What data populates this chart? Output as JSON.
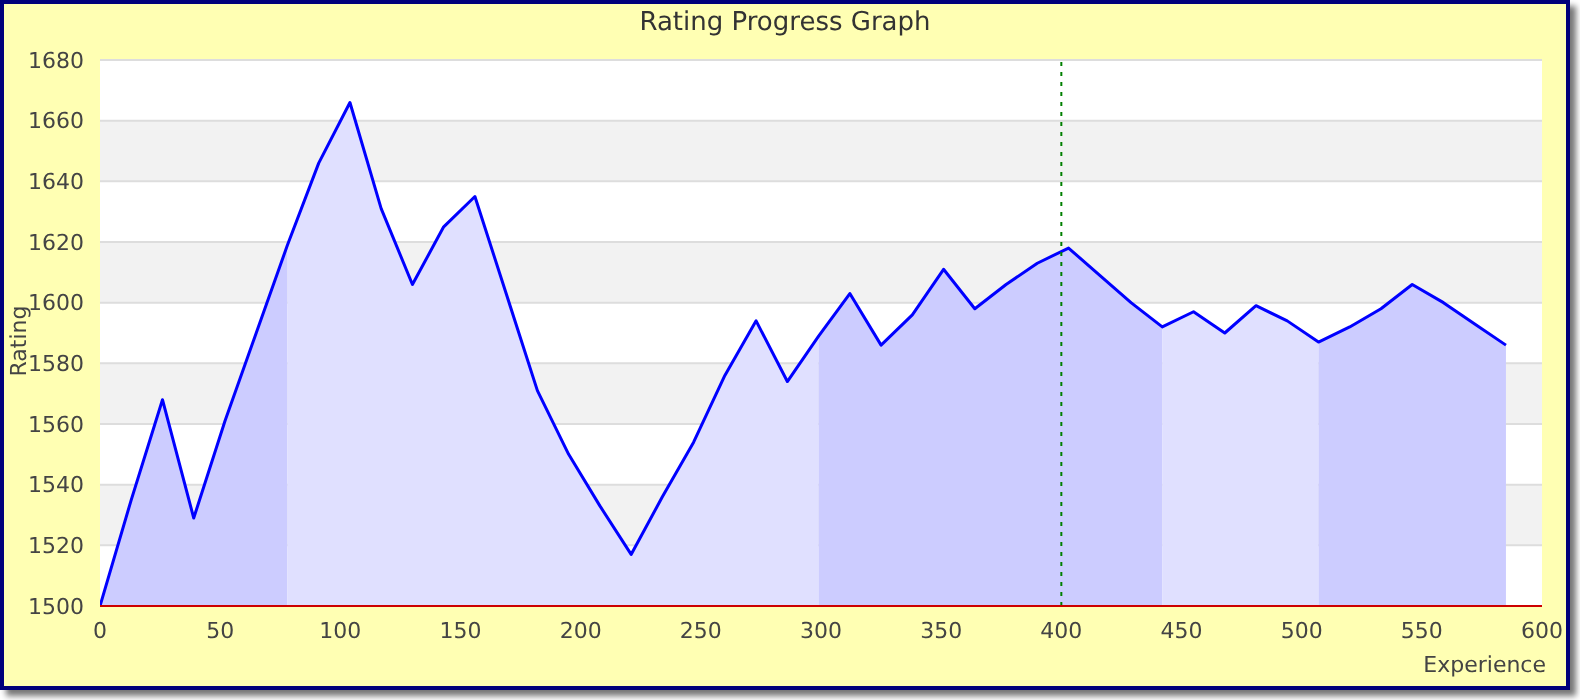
{
  "chart_data": {
    "type": "area",
    "title": "Rating Progress Graph",
    "xlabel": "Experience",
    "ylabel": "Rating",
    "xlim": [
      0,
      600
    ],
    "xticks": [
      0,
      50,
      100,
      150,
      200,
      250,
      300,
      350,
      400,
      450,
      500,
      550,
      600
    ],
    "ylim": [
      1500,
      1680
    ],
    "yticks": [
      1500,
      1520,
      1540,
      1560,
      1580,
      1600,
      1620,
      1640,
      1660,
      1680
    ],
    "grid": "y",
    "marker": "none",
    "ref_lines": [
      {
        "axis": "x",
        "value": 400,
        "label": null,
        "color": "#008000",
        "line_style": "dotted"
      }
    ],
    "series": [
      {
        "color": "#ccccff",
        "x": [
          0,
          13,
          26,
          39,
          52,
          65,
          78
        ],
        "values": [
          1500,
          1535,
          1568,
          1529,
          1561,
          1590,
          1619
        ]
      },
      {
        "color": "#e0e0ff",
        "x": [
          78,
          91,
          104,
          117,
          130,
          143,
          156,
          169,
          182,
          195,
          208,
          221,
          234,
          247,
          260,
          273,
          286,
          299
        ],
        "values": [
          1619,
          1646,
          1666,
          1631,
          1606,
          1625,
          1635,
          1603,
          1571,
          1550,
          1533,
          1517,
          1536,
          1554,
          1576,
          1594,
          1574,
          1589
        ]
      },
      {
        "color": "#ccccff",
        "x": [
          299,
          312,
          325,
          338,
          351,
          364,
          377,
          390,
          403,
          416,
          429,
          442
        ],
        "values": [
          1589,
          1603,
          1586,
          1596,
          1611,
          1598,
          1606,
          1613,
          1618,
          1609,
          1600,
          1592
        ]
      },
      {
        "color": "#e0e0ff",
        "x": [
          442,
          455,
          468,
          481,
          494,
          507
        ],
        "values": [
          1592,
          1597,
          1590,
          1599,
          1594,
          1587
        ]
      },
      {
        "color": "#ccccff",
        "x": [
          507,
          520,
          533,
          546,
          559,
          572,
          585
        ],
        "values": [
          1587,
          1592,
          1598,
          1606,
          1600,
          1593,
          1586
        ]
      },
      {
        "type": "line",
        "color": "#0000ff",
        "x": [
          0,
          13,
          26,
          39,
          52,
          65,
          78,
          91,
          104,
          117,
          130,
          143,
          156,
          169,
          182,
          195,
          208,
          221,
          234,
          247,
          260,
          273,
          286,
          299,
          312,
          325,
          338,
          351,
          364,
          377,
          390,
          403,
          416,
          429,
          442,
          455,
          468,
          481,
          494,
          507,
          520,
          533,
          546,
          559,
          572,
          585
        ],
        "values": [
          1500,
          1535,
          1568,
          1529,
          1561,
          1590,
          1619,
          1646,
          1666,
          1631,
          1606,
          1625,
          1635,
          1603,
          1571,
          1550,
          1533,
          1517,
          1536,
          1554,
          1576,
          1594,
          1574,
          1589,
          1603,
          1586,
          1596,
          1611,
          1598,
          1606,
          1613,
          1618,
          1609,
          1600,
          1592,
          1597,
          1590,
          1599,
          1594,
          1587,
          1592,
          1598,
          1606,
          1600,
          1593,
          1586
        ]
      }
    ]
  }
}
